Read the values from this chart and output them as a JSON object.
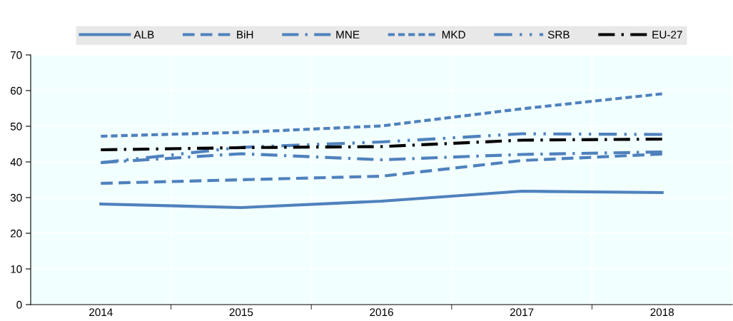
{
  "chart_data": {
    "type": "line",
    "categories": [
      "2014",
      "2015",
      "2016",
      "2017",
      "2018"
    ],
    "ylim": [
      0,
      70
    ],
    "yticks": [
      0,
      10,
      20,
      30,
      40,
      50,
      60,
      70
    ],
    "grid": true,
    "legend": "top",
    "marker": "none",
    "series": [
      {
        "name": "ALB",
        "color": "#4f81bd",
        "line_style": "solid",
        "values": [
          28.2,
          27.2,
          29.0,
          31.8,
          31.4
        ]
      },
      {
        "name": "BiH",
        "color": "#4f81bd",
        "line_style": "dashed",
        "values": [
          34.0,
          35.0,
          36.0,
          40.4,
          42.2
        ]
      },
      {
        "name": "MNE",
        "color": "#4f81bd",
        "line_style": "dashdot",
        "values": [
          39.8,
          42.3,
          40.6,
          42.1,
          42.8
        ]
      },
      {
        "name": "MKD",
        "color": "#4f81bd",
        "line_style": "dotted",
        "values": [
          47.2,
          48.3,
          50.1,
          54.9,
          59.1
        ]
      },
      {
        "name": "SRB",
        "color": "#4f81bd",
        "line_style": "dashdotdot",
        "values": [
          39.8,
          44.1,
          45.6,
          47.9,
          47.7
        ]
      },
      {
        "name": "EU-27",
        "color": "#000000",
        "line_style": "dashdot",
        "values": [
          43.4,
          44.0,
          44.3,
          46.1,
          46.4
        ]
      }
    ]
  }
}
